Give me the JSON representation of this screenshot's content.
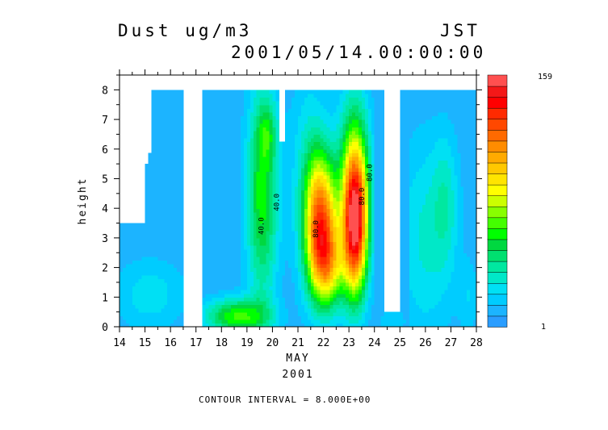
{
  "chart_data": {
    "type": "heatmap",
    "title": "Dust ug/m3",
    "time_zone": "JST",
    "timestamp": "2001/05/14.00:00:00",
    "xlabel": "MAY",
    "xlabel2": "2001",
    "ylabel": "height",
    "footer": "CONTOUR INTERVAL = 8.000E+00",
    "x_ticks": [
      "14",
      "15",
      "16",
      "17",
      "18",
      "19",
      "20",
      "21",
      "22",
      "23",
      "24",
      "25",
      "26",
      "27",
      "28"
    ],
    "y_ticks": [
      "0",
      "1",
      "2",
      "3",
      "4",
      "5",
      "6",
      "7",
      "8"
    ],
    "xlim": [
      14,
      28
    ],
    "ylim": [
      0,
      8.5
    ],
    "colorbar": {
      "min_label": "1",
      "max_label": "159",
      "levels": [
        1,
        159
      ],
      "colors": [
        "#2a9dff",
        "#1cb4ff",
        "#00ccff",
        "#00e0f4",
        "#00e8c8",
        "#00e8a0",
        "#00e070",
        "#00d840",
        "#00ff00",
        "#44ff00",
        "#88ff00",
        "#ccff00",
        "#ffff00",
        "#ffe400",
        "#ffc800",
        "#ffaa00",
        "#ff8c00",
        "#ff6a00",
        "#ff4800",
        "#ff2a00",
        "#ff0000",
        "#f41818",
        "#ff5050"
      ]
    },
    "contour_labels": [
      {
        "text": "40.0",
        "x": 19.65,
        "y": 3.4
      },
      {
        "text": "40.0",
        "x": 20.25,
        "y": 4.2
      },
      {
        "text": "80.0",
        "x": 21.8,
        "y": 3.3
      },
      {
        "text": "80.0",
        "x": 23.6,
        "y": 4.4
      },
      {
        "text": "80.0",
        "x": 23.9,
        "y": 5.2
      }
    ]
  }
}
